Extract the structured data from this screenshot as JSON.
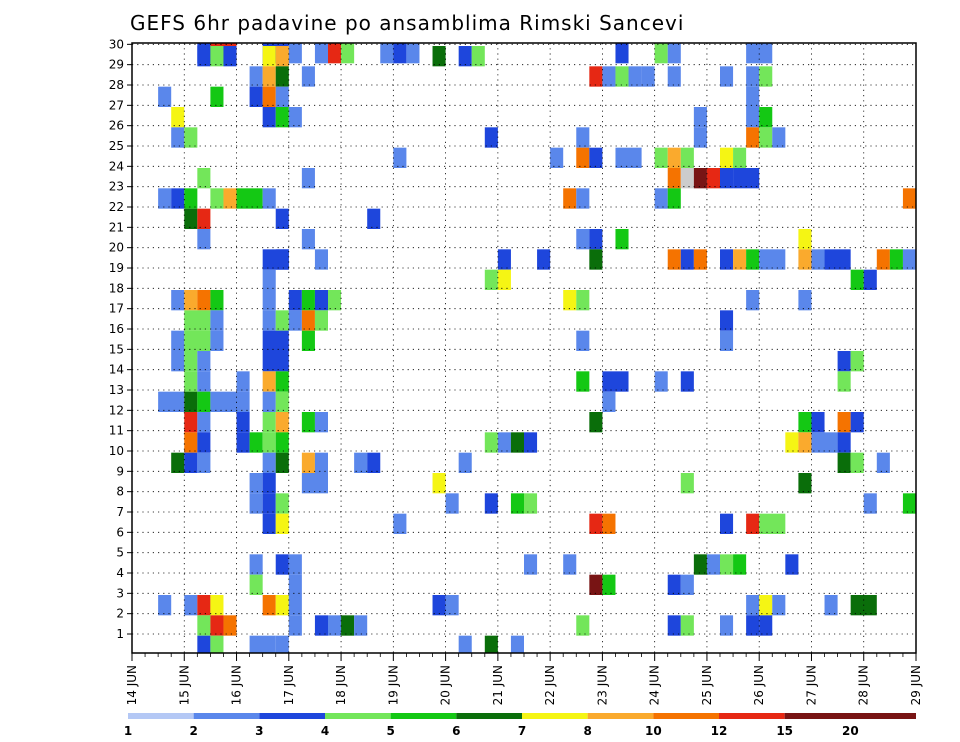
{
  "chart_data": {
    "type": "heatmap",
    "title": "GEFS 6hr padavine po ansamblima Rimski Sancevi",
    "xlabel": "",
    "ylabel": "",
    "x_tick_labels": [
      "14 JUN",
      "15 JUN",
      "16 JUN",
      "17 JUN",
      "18 JUN",
      "19 JUN",
      "20 JUN",
      "21 JUN",
      "22 JUN",
      "23 JUN",
      "24 JUN",
      "25 JUN",
      "26 JUN",
      "27 JUN",
      "28 JUN",
      "29 JUN"
    ],
    "y_tick_labels": [
      1,
      2,
      3,
      4,
      5,
      6,
      7,
      8,
      9,
      10,
      11,
      12,
      13,
      14,
      15,
      16,
      17,
      18,
      19,
      20,
      21,
      22,
      23,
      24,
      25,
      26,
      27,
      28,
      29,
      30
    ],
    "x_unit": "6-hourly steps from 14 JUN 00Z",
    "grid": true,
    "colorbar": {
      "levels": [
        1,
        2,
        3,
        4,
        5,
        6,
        7,
        8,
        10,
        12,
        15,
        20
      ],
      "colors": [
        "#b4c8f5",
        "#5a87eb",
        "#1e46dc",
        "#73e65a",
        "#14c814",
        "#0a6e0a",
        "#f5f514",
        "#faaa2d",
        "#f57300",
        "#e62814",
        "#781414"
      ]
    },
    "cells": [
      [
        30,
        "15.25-15.5",
        2
      ],
      [
        30,
        "15.5-16",
        9
      ],
      [
        30,
        "16.5-17",
        2
      ],
      [
        30,
        "17-17.25",
        1
      ],
      [
        30,
        "17.5-17.75",
        1
      ],
      [
        30,
        "17.75-18",
        9
      ],
      [
        30,
        "18-18.25",
        3
      ],
      [
        30,
        "18.75-19",
        1
      ],
      [
        30,
        "19-19.25",
        2
      ],
      [
        30,
        "19.25-19.5",
        1
      ],
      [
        30,
        "23.25-23.5",
        2
      ],
      [
        30,
        "24-24.25",
        3
      ],
      [
        30,
        "24.25-24.5",
        1
      ],
      [
        30,
        "25.75-26.25",
        1
      ],
      [
        29,
        "15.25-15.5",
        2
      ],
      [
        29,
        "15.5-15.75",
        3
      ],
      [
        29,
        "15.75-16",
        2
      ],
      [
        29,
        "16.5-16.75",
        6
      ],
      [
        29,
        "16.75-17",
        7
      ],
      [
        29,
        "19.75-20",
        5
      ],
      [
        29,
        "20.25-20.5",
        2
      ],
      [
        29,
        "20.5-20.75",
        3
      ],
      [
        28,
        "16.25-16.5",
        1
      ],
      [
        28,
        "16.5-16.75",
        7
      ],
      [
        28,
        "16.75-17",
        5
      ],
      [
        28,
        "17.25-17.5",
        1
      ],
      [
        28,
        "22.75-23",
        9
      ],
      [
        28,
        "23-23.25",
        1
      ],
      [
        28,
        "23.25-23.5",
        3
      ],
      [
        28,
        "23.5-23.75",
        1
      ],
      [
        28,
        "23.75-24",
        1
      ],
      [
        28,
        "24.25-24.5",
        1
      ],
      [
        28,
        "25.25-25.5",
        1
      ],
      [
        28,
        "25.75-26",
        1
      ],
      [
        28,
        "26-26.25",
        3
      ],
      [
        27,
        "14.5-14.75",
        1
      ],
      [
        27,
        "15.5-15.75",
        4
      ],
      [
        27,
        "16.25-16.5",
        2
      ],
      [
        27,
        "16.5-16.75",
        8
      ],
      [
        27,
        "16.75-17",
        1
      ],
      [
        27,
        "25.75-26",
        1
      ],
      [
        26,
        "14.75-15",
        6
      ],
      [
        26,
        "16.5-16.75",
        2
      ],
      [
        26,
        "16.75-17",
        4
      ],
      [
        26,
        "17-17.25",
        1
      ],
      [
        26,
        "24.75-25",
        1
      ],
      [
        26,
        "25.75-26",
        1
      ],
      [
        26,
        "26-26.25",
        4
      ],
      [
        25,
        "14.75-15",
        1
      ],
      [
        25,
        "15-15.25",
        3
      ],
      [
        25,
        "20.75-21",
        2
      ],
      [
        25,
        "22.5-22.75",
        1
      ],
      [
        25,
        "24.75-25",
        1
      ],
      [
        25,
        "25.75-26",
        8
      ],
      [
        25,
        "26-26.25",
        3
      ],
      [
        25,
        "26.25-26.5",
        1
      ],
      [
        24,
        "19-19.25",
        1
      ],
      [
        24,
        "22-22.25",
        1
      ],
      [
        24,
        "22.5-22.75",
        8
      ],
      [
        24,
        "22.75-23",
        2
      ],
      [
        24,
        "23.25-23.75",
        1
      ],
      [
        24,
        "24-24.25",
        3
      ],
      [
        24,
        "24.25-24.5",
        7
      ],
      [
        24,
        "24.5-24.75",
        3
      ],
      [
        24,
        "25.25-25.5",
        6
      ],
      [
        24,
        "25.5-25.75",
        3
      ],
      [
        23,
        "15.25-15.5",
        3
      ],
      [
        23,
        "17.25-17.5",
        1
      ],
      [
        23,
        "24.25-24.5",
        8
      ],
      [
        23,
        "24.5-24.75",
        11
      ],
      [
        23,
        "24.75-25",
        10
      ],
      [
        23,
        "25-25.25",
        9
      ],
      [
        23,
        "25.25-25.5",
        2
      ],
      [
        23,
        "25.5-26",
        2
      ],
      [
        22,
        "14.5-14.75",
        1
      ],
      [
        22,
        "14.75-15",
        2
      ],
      [
        22,
        "15-15.25",
        4
      ],
      [
        22,
        "15.5-15.75",
        3
      ],
      [
        22,
        "15.75-16",
        7
      ],
      [
        22,
        "16-16.5",
        4
      ],
      [
        22,
        "16.5-16.75",
        1
      ],
      [
        22,
        "22.25-22.5",
        8
      ],
      [
        22,
        "22.5-22.75",
        1
      ],
      [
        22,
        "24-24.25",
        1
      ],
      [
        22,
        "24.25-24.5",
        4
      ],
      [
        22,
        "28.75-29",
        8
      ],
      [
        21,
        "15-15.25",
        5
      ],
      [
        21,
        "15.25-15.5",
        9
      ],
      [
        21,
        "16.75-17",
        2
      ],
      [
        21,
        "18.5-18.75",
        2
      ],
      [
        20,
        "15.25-15.5",
        1
      ],
      [
        20,
        "17.25-17.5",
        1
      ],
      [
        20,
        "22.5-22.75",
        1
      ],
      [
        20,
        "22.75-23",
        2
      ],
      [
        20,
        "23.25-23.5",
        4
      ],
      [
        20,
        "26.75-27",
        6
      ],
      [
        19,
        "16.5-17",
        2
      ],
      [
        19,
        "16.75-17",
        2
      ],
      [
        19,
        "17.5-17.75",
        1
      ],
      [
        19,
        "21-21.25",
        2
      ],
      [
        19,
        "21.75-22",
        2
      ],
      [
        19,
        "22.75-23",
        5
      ],
      [
        19,
        "24.25-24.5",
        8
      ],
      [
        19,
        "24.5-24.75",
        2
      ],
      [
        19,
        "24.75-25",
        8
      ],
      [
        19,
        "25.25-25.5",
        2
      ],
      [
        19,
        "25.5-25.75",
        7
      ],
      [
        19,
        "25.75-26",
        4
      ],
      [
        19,
        "26-26.5",
        1
      ],
      [
        19,
        "26.75-27",
        7
      ],
      [
        19,
        "27-27.25",
        1
      ],
      [
        19,
        "27.25-27.75",
        2
      ],
      [
        19,
        "28.25-28.5",
        8
      ],
      [
        19,
        "28.5-28.75",
        4
      ],
      [
        19,
        "28.75-29",
        1
      ],
      [
        18,
        "16.5-16.75",
        1
      ],
      [
        18,
        "20.75-21",
        3
      ],
      [
        18,
        "21-21.25",
        6
      ],
      [
        18,
        "27.75-28",
        4
      ],
      [
        18,
        "28-28.25",
        2
      ],
      [
        17,
        "14.75-15",
        1
      ],
      [
        17,
        "15-15.25",
        7
      ],
      [
        17,
        "15.25-15.5",
        8
      ],
      [
        17,
        "15.5-15.75",
        4
      ],
      [
        17,
        "16.5-16.75",
        1
      ],
      [
        17,
        "17-17.25",
        2
      ],
      [
        17,
        "17.25-17.5",
        4
      ],
      [
        17,
        "17.5-17.75",
        2
      ],
      [
        17,
        "17.75-18",
        3
      ],
      [
        17,
        "22.25-22.5",
        6
      ],
      [
        17,
        "22.5-22.75",
        3
      ],
      [
        17,
        "25.75-26",
        1
      ],
      [
        17,
        "26.75-27",
        1
      ],
      [
        16,
        "15-15.5",
        3
      ],
      [
        16,
        "15.5-15.75",
        1
      ],
      [
        16,
        "16.5-16.75",
        1
      ],
      [
        16,
        "16.75-17",
        3
      ],
      [
        16,
        "17-17.25",
        1
      ],
      [
        16,
        "17.25-17.5",
        8
      ],
      [
        16,
        "17.5-17.75",
        3
      ],
      [
        16,
        "25.25-25.5",
        2
      ],
      [
        15,
        "14.75-15",
        1
      ],
      [
        15,
        "15-15.5",
        3
      ],
      [
        15,
        "15.5-15.75",
        1
      ],
      [
        15,
        "16.5-17",
        2
      ],
      [
        15,
        "17.25-17.5",
        4
      ],
      [
        15,
        "22.5-22.75",
        1
      ],
      [
        15,
        "25.25-25.5",
        1
      ],
      [
        14,
        "14.75-15",
        1
      ],
      [
        14,
        "15-15.25",
        3
      ],
      [
        14,
        "15.25-15.5",
        1
      ],
      [
        14,
        "16.5-17",
        2
      ],
      [
        14,
        "27.5-27.75",
        2
      ],
      [
        14,
        "27.75-28",
        3
      ],
      [
        13,
        "15-15.25",
        3
      ],
      [
        13,
        "15.25-15.5",
        1
      ],
      [
        13,
        "16-16.25",
        1
      ],
      [
        13,
        "16.5-16.75",
        7
      ],
      [
        13,
        "16.75-17",
        4
      ],
      [
        13,
        "22.5-22.75",
        4
      ],
      [
        13,
        "23-23.5",
        2
      ],
      [
        13,
        "24-24.25",
        1
      ],
      [
        13,
        "24.5-24.75",
        2
      ],
      [
        13,
        "27.5-27.75",
        3
      ],
      [
        12,
        "14.5-15",
        1
      ],
      [
        12,
        "15-15.25",
        5
      ],
      [
        12,
        "15.25-15.5",
        4
      ],
      [
        12,
        "15.5-16.25",
        1
      ],
      [
        12,
        "16.5-16.75",
        1
      ],
      [
        12,
        "16.75-17",
        3
      ],
      [
        12,
        "23-23.25",
        1
      ],
      [
        11,
        "15-15.25",
        9
      ],
      [
        11,
        "15.25-15.5",
        1
      ],
      [
        11,
        "16-16.25",
        2
      ],
      [
        11,
        "16.5-16.75",
        3
      ],
      [
        11,
        "16.75-17",
        7
      ],
      [
        11,
        "17.25-17.5",
        4
      ],
      [
        11,
        "17.5-17.75",
        1
      ],
      [
        11,
        "22.75-23",
        5
      ],
      [
        11,
        "26.75-27",
        4
      ],
      [
        11,
        "27-27.25",
        2
      ],
      [
        11,
        "27.5-27.75",
        8
      ],
      [
        11,
        "27.75-28",
        2
      ],
      [
        10,
        "15-15.25",
        8
      ],
      [
        10,
        "15.25-15.5",
        2
      ],
      [
        10,
        "16-16.25",
        2
      ],
      [
        10,
        "16.25-16.5",
        4
      ],
      [
        10,
        "16.5-16.75",
        3
      ],
      [
        10,
        "16.75-17",
        4
      ],
      [
        10,
        "20.75-21",
        3
      ],
      [
        10,
        "21-21.25",
        1
      ],
      [
        10,
        "21.25-21.5",
        5
      ],
      [
        10,
        "21.5-21.75",
        2
      ],
      [
        10,
        "26.5-26.75",
        6
      ],
      [
        10,
        "26.75-27",
        7
      ],
      [
        10,
        "27-27.5",
        1
      ],
      [
        10,
        "27.5-27.75",
        2
      ],
      [
        9,
        "14.75-15",
        5
      ],
      [
        9,
        "15-15.25",
        2
      ],
      [
        9,
        "15.25-15.5",
        1
      ],
      [
        9,
        "16.5-16.75",
        1
      ],
      [
        9,
        "16.75-17",
        5
      ],
      [
        9,
        "17.25-17.5",
        7
      ],
      [
        9,
        "17.5-17.75",
        1
      ],
      [
        9,
        "18.25-18.5",
        1
      ],
      [
        9,
        "18.5-18.75",
        2
      ],
      [
        9,
        "20.25-20.5",
        1
      ],
      [
        9,
        "27.5-27.75",
        5
      ],
      [
        9,
        "27.75-28",
        3
      ],
      [
        9,
        "28.25-28.5",
        1
      ],
      [
        8,
        "16.25-16.5",
        1
      ],
      [
        8,
        "16.5-16.75",
        2
      ],
      [
        8,
        "17.25-17.75",
        1
      ],
      [
        8,
        "19.75-20",
        6
      ],
      [
        8,
        "24.5-24.75",
        3
      ],
      [
        8,
        "26.75-27",
        5
      ],
      [
        7,
        "16.25-16.5",
        1
      ],
      [
        7,
        "16.5-16.75",
        2
      ],
      [
        7,
        "16.75-17",
        3
      ],
      [
        7,
        "20-20.25",
        1
      ],
      [
        7,
        "20.75-21",
        2
      ],
      [
        7,
        "21.25-21.5",
        4
      ],
      [
        7,
        "21.5-21.75",
        3
      ],
      [
        7,
        "28-28.25",
        1
      ],
      [
        7,
        "28.75-29",
        4
      ],
      [
        6,
        "16.5-16.75",
        2
      ],
      [
        6,
        "16.75-17",
        6
      ],
      [
        6,
        "19-19.25",
        1
      ],
      [
        6,
        "22.75-23",
        9
      ],
      [
        6,
        "23-23.25",
        8
      ],
      [
        6,
        "25.25-25.5",
        2
      ],
      [
        6,
        "25.75-26",
        9
      ],
      [
        6,
        "26-26.5",
        3
      ],
      [
        4,
        "16.25-16.5",
        1
      ],
      [
        4,
        "16.75-17",
        2
      ],
      [
        4,
        "17-17.25",
        1
      ],
      [
        4,
        "21.5-21.75",
        1
      ],
      [
        4,
        "22.25-22.5",
        1
      ],
      [
        4,
        "24.75-25",
        5
      ],
      [
        4,
        "25-25.25",
        1
      ],
      [
        4,
        "25.25-25.5",
        3
      ],
      [
        4,
        "25.5-25.75",
        4
      ],
      [
        4,
        "26.5-26.75",
        2
      ],
      [
        3,
        "16.25-16.5",
        3
      ],
      [
        3,
        "17-17.25",
        1
      ],
      [
        3,
        "22.75-23",
        10
      ],
      [
        3,
        "23-23.25",
        4
      ],
      [
        3,
        "24.25-24.5",
        2
      ],
      [
        3,
        "24.5-24.75",
        1
      ],
      [
        2,
        "14.5-14.75",
        1
      ],
      [
        2,
        "15-15.25",
        1
      ],
      [
        2,
        "15.25-15.5",
        9
      ],
      [
        2,
        "15.5-15.75",
        6
      ],
      [
        2,
        "16.5-16.75",
        8
      ],
      [
        2,
        "16.75-17",
        6
      ],
      [
        2,
        "17-17.25",
        1
      ],
      [
        2,
        "19.75-20",
        2
      ],
      [
        2,
        "20-20.25",
        1
      ],
      [
        2,
        "25.75-26",
        1
      ],
      [
        2,
        "26-26.25",
        6
      ],
      [
        2,
        "26.25-26.5",
        1
      ],
      [
        2,
        "27.25-27.5",
        1
      ],
      [
        2,
        "27.75-28.25",
        5
      ],
      [
        1,
        "15.25-15.5",
        3
      ],
      [
        1,
        "15.5-15.75",
        9
      ],
      [
        1,
        "15.75-16",
        8
      ],
      [
        1,
        "17-17.25",
        1
      ],
      [
        1,
        "17.5-17.75",
        2
      ],
      [
        1,
        "17.75-18",
        1
      ],
      [
        1,
        "18-18.25",
        5
      ],
      [
        1,
        "18.25-18.5",
        1
      ],
      [
        1,
        "22.5-22.75",
        3
      ],
      [
        1,
        "24.25-24.5",
        2
      ],
      [
        1,
        "24.5-24.75",
        3
      ],
      [
        1,
        "25.25-25.5",
        1
      ],
      [
        1,
        "25.75-26",
        2
      ],
      [
        1,
        "26-26.25",
        2
      ],
      [
        0,
        "15.25-15.5",
        2
      ],
      [
        0,
        "15.5-15.75",
        3
      ],
      [
        0,
        "16.25-16.75",
        1
      ],
      [
        0,
        "16.75-17",
        1
      ],
      [
        0,
        "20.25-20.5",
        1
      ],
      [
        0,
        "20.75-21",
        5
      ],
      [
        0,
        "21.25-21.5",
        1
      ]
    ]
  }
}
